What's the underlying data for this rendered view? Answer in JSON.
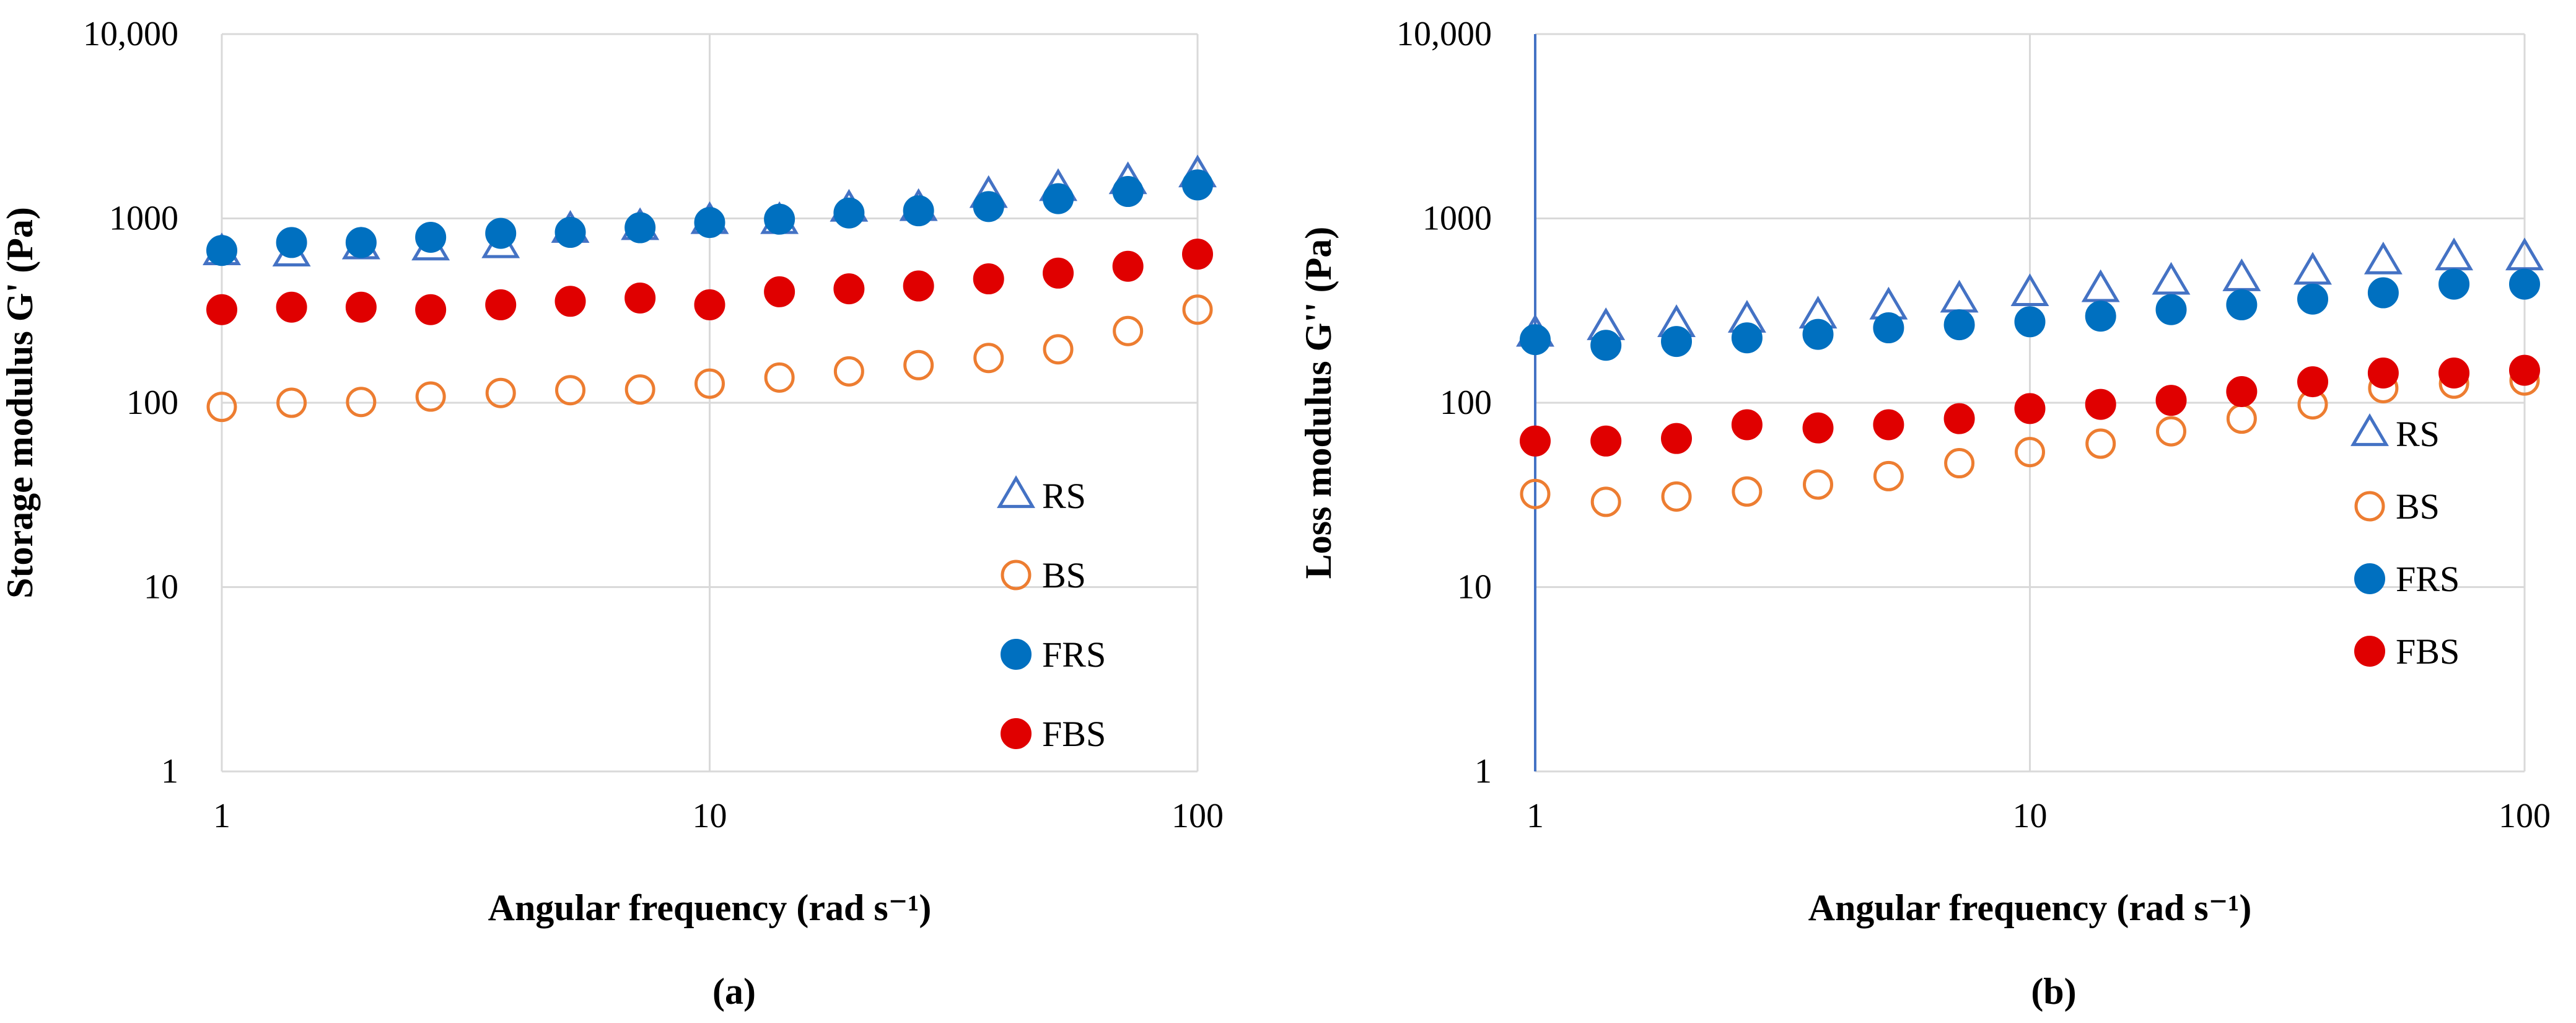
{
  "figure": {
    "panel_a": {
      "caption": "(a)"
    },
    "panel_b": {
      "caption": "(b)"
    }
  },
  "colors": {
    "RS": "#4472C4",
    "BS": "#ED7D31",
    "FRS": "#0070C0",
    "FBS": "#E00000",
    "grid": "#d9d9d9"
  },
  "chart_data": [
    {
      "id": "a",
      "type": "scatter",
      "xscale": "log",
      "yscale": "log",
      "title": "",
      "xlabel": "Angular frequency (rad s⁻¹)",
      "ylabel": "Storage modulus G' (Pa)",
      "xlim": [
        1,
        100
      ],
      "ylim": [
        1,
        10000
      ],
      "xticks": [
        1,
        10,
        100
      ],
      "xtick_labels": [
        "1",
        "10",
        "100"
      ],
      "yticks": [
        1,
        10,
        100,
        1000,
        10000
      ],
      "ytick_labels": [
        "1",
        "10",
        "100",
        "1000",
        "10,000"
      ],
      "x": [
        1,
        1.39,
        1.93,
        2.68,
        3.73,
        5.18,
        7.2,
        10,
        13.9,
        19.3,
        26.8,
        37.3,
        51.8,
        72,
        100
      ],
      "series": [
        {
          "name": "RS",
          "marker": "triangle-open",
          "values": [
            650,
            640,
            700,
            690,
            710,
            860,
            890,
            960,
            960,
            1120,
            1130,
            1330,
            1450,
            1580,
            1720
          ]
        },
        {
          "name": "BS",
          "marker": "circle-open",
          "values": [
            95,
            100,
            101,
            108,
            113,
            117,
            118,
            127,
            137,
            148,
            160,
            175,
            195,
            245,
            320
          ]
        },
        {
          "name": "FRS",
          "marker": "circle-filled",
          "values": [
            670,
            740,
            740,
            790,
            830,
            840,
            890,
            950,
            990,
            1070,
            1100,
            1160,
            1280,
            1400,
            1520
          ]
        },
        {
          "name": "FBS",
          "marker": "circle-filled",
          "values": [
            320,
            330,
            330,
            320,
            340,
            355,
            370,
            340,
            400,
            415,
            430,
            470,
            505,
            550,
            640
          ]
        }
      ],
      "legend": [
        "RS",
        "BS",
        "FRS",
        "FBS"
      ],
      "legend_position": "bottom-right",
      "grid": true
    },
    {
      "id": "b",
      "type": "scatter",
      "xscale": "log",
      "yscale": "log",
      "title": "",
      "xlabel": "Angular frequency (rad s⁻¹)",
      "ylabel": "Loss modulus G'' (Pa)",
      "xlim": [
        1,
        100
      ],
      "ylim": [
        1,
        10000
      ],
      "xticks": [
        1,
        10,
        100
      ],
      "xtick_labels": [
        "1",
        "10",
        "100"
      ],
      "yticks": [
        1,
        10,
        100,
        1000,
        10000
      ],
      "ytick_labels": [
        "1",
        "10",
        "100",
        "1000",
        "10,000"
      ],
      "x": [
        1,
        1.39,
        1.93,
        2.68,
        3.73,
        5.18,
        7.2,
        10,
        13.9,
        19.3,
        26.8,
        37.3,
        51.8,
        72,
        100
      ],
      "series": [
        {
          "name": "RS",
          "marker": "triangle-open",
          "values": [
            235,
            255,
            265,
            280,
            295,
            330,
            360,
            390,
            410,
            450,
            470,
            510,
            580,
            610,
            610
          ]
        },
        {
          "name": "BS",
          "marker": "circle-open",
          "values": [
            32,
            29,
            31,
            33,
            36,
            40,
            47,
            54,
            60,
            70,
            82,
            98,
            120,
            127,
            132
          ]
        },
        {
          "name": "FRS",
          "marker": "circle-filled",
          "values": [
            220,
            205,
            215,
            225,
            235,
            255,
            265,
            275,
            295,
            320,
            340,
            365,
            395,
            440,
            440
          ]
        },
        {
          "name": "FBS",
          "marker": "circle-filled",
          "values": [
            62,
            62,
            64,
            76,
            73,
            76,
            82,
            93,
            98,
            103,
            115,
            130,
            145,
            145,
            150
          ]
        }
      ],
      "legend": [
        "RS",
        "BS",
        "FRS",
        "FBS"
      ],
      "legend_position": "right",
      "grid": true
    }
  ]
}
